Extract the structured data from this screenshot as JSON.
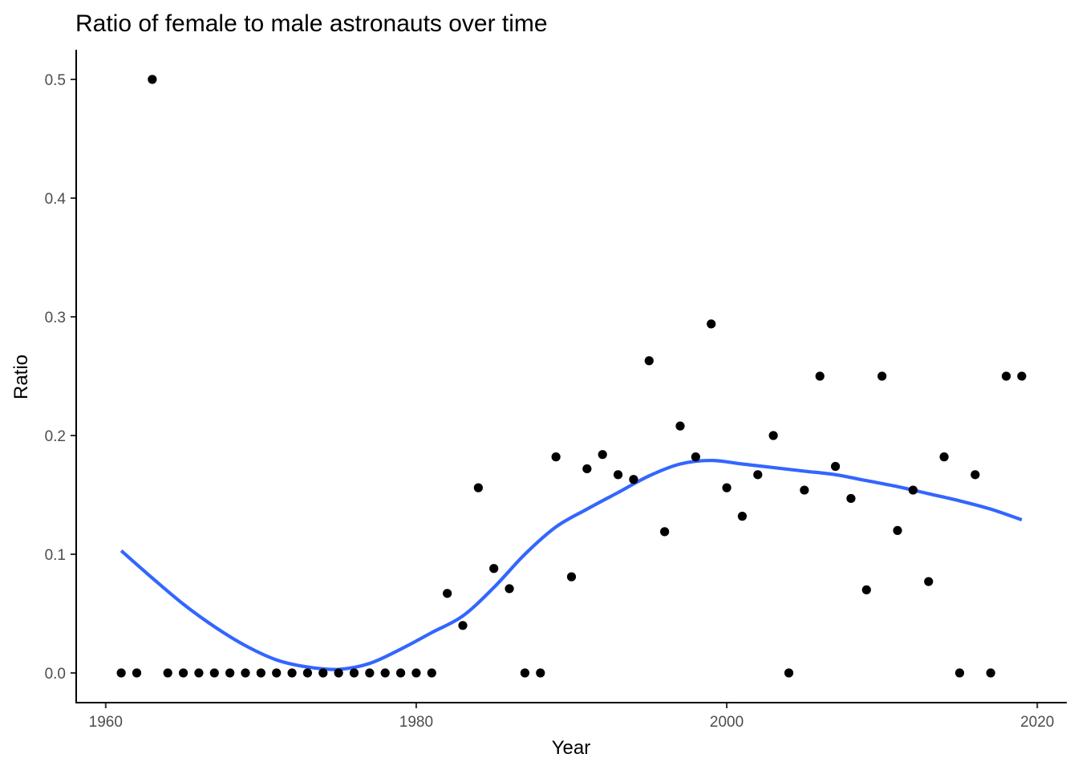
{
  "chart_data": {
    "type": "scatter",
    "title": "Ratio of female to male astronauts over time",
    "xlabel": "Year",
    "ylabel": "Ratio",
    "xlim": [
      1958.1,
      2021.9
    ],
    "ylim": [
      -0.025,
      0.525
    ],
    "xticks": [
      1960,
      1980,
      2000,
      2020
    ],
    "yticks": [
      0.0,
      0.1,
      0.2,
      0.3,
      0.4,
      0.5
    ],
    "xtick_labels": [
      "1960",
      "1980",
      "2000",
      "2020"
    ],
    "ytick_labels": [
      "0.0",
      "0.1",
      "0.2",
      "0.3",
      "0.4",
      "0.5"
    ],
    "grid": false,
    "legend": "none",
    "series": [
      {
        "kind": "points",
        "color": "#000000",
        "x": [
          1961,
          1962,
          1963,
          1964,
          1965,
          1966,
          1967,
          1968,
          1969,
          1970,
          1971,
          1972,
          1973,
          1974,
          1975,
          1976,
          1977,
          1978,
          1979,
          1980,
          1981,
          1982,
          1983,
          1984,
          1985,
          1986,
          1987,
          1988,
          1989,
          1990,
          1991,
          1992,
          1993,
          1994,
          1995,
          1996,
          1997,
          1998,
          1999,
          2000,
          2001,
          2002,
          2003,
          2004,
          2005,
          2006,
          2007,
          2008,
          2009,
          2010,
          2011,
          2012,
          2013,
          2014,
          2015,
          2016,
          2017,
          2018,
          2019
        ],
        "y": [
          0,
          0,
          0.5,
          0,
          0,
          0,
          0,
          0,
          0,
          0,
          0,
          0,
          0,
          0,
          0,
          0,
          0,
          0,
          0,
          0,
          0,
          0.067,
          0.04,
          0.156,
          0.088,
          0.071,
          0,
          0,
          0.182,
          0.081,
          0.172,
          0.184,
          0.167,
          0.163,
          0.263,
          0.119,
          0.208,
          0.182,
          0.294,
          0.156,
          0.132,
          0.167,
          0.2,
          0,
          0.154,
          0.25,
          0.174,
          0.147,
          0.07,
          0.25,
          0.12,
          0.154,
          0.077,
          0.182,
          0,
          0.167,
          0,
          0.25,
          0.25
        ]
      },
      {
        "kind": "smooth",
        "color": "#3366FF",
        "x": [
          1961,
          1963,
          1965,
          1967,
          1969,
          1971,
          1973,
          1975,
          1977,
          1979,
          1981,
          1983,
          1985,
          1987,
          1989,
          1991,
          1993,
          1995,
          1997,
          1999,
          2001,
          2003,
          2005,
          2007,
          2009,
          2011,
          2013,
          2015,
          2017,
          2019
        ],
        "y": [
          0.103,
          0.08,
          0.058,
          0.039,
          0.023,
          0.011,
          0.005,
          0.003,
          0.008,
          0.02,
          0.034,
          0.048,
          0.072,
          0.1,
          0.123,
          0.138,
          0.152,
          0.166,
          0.176,
          0.179,
          0.176,
          0.173,
          0.17,
          0.167,
          0.162,
          0.157,
          0.151,
          0.145,
          0.138,
          0.129
        ]
      }
    ]
  }
}
